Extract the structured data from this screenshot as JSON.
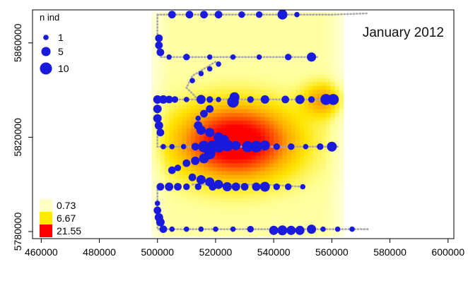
{
  "chart_data": {
    "type": "scatter",
    "title": "January 2012",
    "xlabel": "",
    "ylabel": "",
    "xlim": [
      457000,
      602000
    ],
    "ylim": [
      5777000,
      5874000
    ],
    "x_ticks": [
      460000,
      480000,
      500000,
      520000,
      540000,
      560000,
      580000,
      600000
    ],
    "y_ticks": [
      5780000,
      5820000,
      5860000
    ],
    "x_tick_labels": [
      "460000",
      "480000",
      "500000",
      "520000",
      "540000",
      "560000",
      "580000",
      "600000"
    ],
    "y_tick_labels": [
      "5780000",
      "5820000",
      "5860000"
    ],
    "grid": false,
    "size_legend": {
      "title": "n ind",
      "placement": "top-left",
      "entries": [
        {
          "label": "1",
          "n": 1
        },
        {
          "label": "5",
          "n": 5
        },
        {
          "label": "10",
          "n": 10
        }
      ]
    },
    "density_legend": {
      "placement": "bottom-left",
      "entries": [
        {
          "label": "0.73",
          "color": "#ffffc4"
        },
        {
          "label": "6.67",
          "color": "#ffea00"
        },
        {
          "label": "21.55",
          "color": "#ff0000"
        }
      ]
    },
    "density_surface": {
      "xrange": [
        498000,
        564000
      ],
      "yrange": [
        5778000,
        5873000
      ],
      "palette": [
        "#fffff0",
        "#ffff99",
        "#ffe400",
        "#ffaa00",
        "#ff5500",
        "#ff0000"
      ],
      "hotspots": [
        {
          "x": 527000,
          "y": 5818000,
          "sx": 14000,
          "sy": 11000,
          "w": 1.0
        },
        {
          "x": 557000,
          "y": 5836000,
          "sx": 5000,
          "sy": 5000,
          "w": 0.45
        }
      ]
    },
    "track_color": "#a8a8a8",
    "point_color": "#1a1adc",
    "tracks": [
      {
        "name": "",
        "points": [
          [
            500000,
            5872000
          ],
          [
            520000,
            5872000
          ],
          [
            540000,
            5872000
          ],
          [
            560000,
            5872000
          ],
          [
            572000,
            5872500
          ]
        ]
      },
      {
        "name": "",
        "points": [
          [
            500000,
            5872000
          ],
          [
            500000,
            5858000
          ],
          [
            501000,
            5854000
          ],
          [
            555000,
            5854000
          ]
        ]
      },
      {
        "name": "",
        "points": [
          [
            520000,
            5852000
          ],
          [
            512000,
            5846000
          ],
          [
            510000,
            5841000
          ],
          [
            514000,
            5836000
          ]
        ]
      },
      {
        "name": "",
        "points": [
          [
            499000,
            5836000
          ],
          [
            561000,
            5836000
          ]
        ]
      },
      {
        "name": "",
        "points": [
          [
            500000,
            5836000
          ],
          [
            500000,
            5816000
          ],
          [
            562000,
            5816000
          ]
        ]
      },
      {
        "name": "",
        "points": [
          [
            512000,
            5800000
          ],
          [
            536000,
            5800000
          ],
          [
            550000,
            5799000
          ]
        ]
      },
      {
        "name": "",
        "points": [
          [
            500000,
            5799000
          ],
          [
            500000,
            5782000
          ],
          [
            500000,
            5781000
          ],
          [
            573000,
            5781000
          ]
        ]
      }
    ],
    "points": [
      {
        "x": 505000,
        "y": 5872000,
        "n": 3
      },
      {
        "x": 511000,
        "y": 5872000,
        "n": 3
      },
      {
        "x": 516000,
        "y": 5872000,
        "n": 3
      },
      {
        "x": 521000,
        "y": 5872000,
        "n": 3
      },
      {
        "x": 529000,
        "y": 5872000,
        "n": 2
      },
      {
        "x": 535000,
        "y": 5872000,
        "n": 2
      },
      {
        "x": 543000,
        "y": 5872000,
        "n": 6
      },
      {
        "x": 548000,
        "y": 5872000,
        "n": 1
      },
      {
        "x": 500500,
        "y": 5862000,
        "n": 3
      },
      {
        "x": 500500,
        "y": 5859000,
        "n": 3
      },
      {
        "x": 501000,
        "y": 5856000,
        "n": 3
      },
      {
        "x": 504000,
        "y": 5854000,
        "n": 1
      },
      {
        "x": 510000,
        "y": 5854000,
        "n": 2
      },
      {
        "x": 518000,
        "y": 5854000,
        "n": 1
      },
      {
        "x": 526000,
        "y": 5854000,
        "n": 1
      },
      {
        "x": 535000,
        "y": 5854000,
        "n": 1
      },
      {
        "x": 545000,
        "y": 5854000,
        "n": 2
      },
      {
        "x": 553000,
        "y": 5854000,
        "n": 5
      },
      {
        "x": 521000,
        "y": 5851000,
        "n": 1
      },
      {
        "x": 518000,
        "y": 5849000,
        "n": 1
      },
      {
        "x": 515000,
        "y": 5847000,
        "n": 1
      },
      {
        "x": 512000,
        "y": 5844000,
        "n": 1
      },
      {
        "x": 500000,
        "y": 5836000,
        "n": 4
      },
      {
        "x": 502000,
        "y": 5836000,
        "n": 4
      },
      {
        "x": 504000,
        "y": 5836000,
        "n": 3
      },
      {
        "x": 506000,
        "y": 5836000,
        "n": 2
      },
      {
        "x": 510000,
        "y": 5836000,
        "n": 1
      },
      {
        "x": 515000,
        "y": 5836000,
        "n": 5
      },
      {
        "x": 518000,
        "y": 5836000,
        "n": 2
      },
      {
        "x": 521000,
        "y": 5836000,
        "n": 1
      },
      {
        "x": 526000,
        "y": 5835000,
        "n": 9
      },
      {
        "x": 526500,
        "y": 5837000,
        "n": 6
      },
      {
        "x": 532000,
        "y": 5836000,
        "n": 2
      },
      {
        "x": 537000,
        "y": 5836000,
        "n": 4
      },
      {
        "x": 544000,
        "y": 5836000,
        "n": 3
      },
      {
        "x": 549000,
        "y": 5836000,
        "n": 5
      },
      {
        "x": 553000,
        "y": 5836000,
        "n": 2
      },
      {
        "x": 558000,
        "y": 5836000,
        "n": 8
      },
      {
        "x": 560500,
        "y": 5836000,
        "n": 8
      },
      {
        "x": 500000,
        "y": 5832000,
        "n": 4
      },
      {
        "x": 500000,
        "y": 5828000,
        "n": 4
      },
      {
        "x": 500500,
        "y": 5825000,
        "n": 4
      },
      {
        "x": 501000,
        "y": 5822000,
        "n": 3
      },
      {
        "x": 518000,
        "y": 5832000,
        "n": 3
      },
      {
        "x": 516000,
        "y": 5830000,
        "n": 3
      },
      {
        "x": 514000,
        "y": 5828000,
        "n": 1
      },
      {
        "x": 515000,
        "y": 5823000,
        "n": 5
      },
      {
        "x": 518000,
        "y": 5822000,
        "n": 5
      },
      {
        "x": 521000,
        "y": 5820000,
        "n": 6
      },
      {
        "x": 523000,
        "y": 5819000,
        "n": 5
      },
      {
        "x": 514000,
        "y": 5825000,
        "n": 4
      },
      {
        "x": 502000,
        "y": 5816000,
        "n": 1
      },
      {
        "x": 505000,
        "y": 5816000,
        "n": 1
      },
      {
        "x": 509000,
        "y": 5816000,
        "n": 1
      },
      {
        "x": 513000,
        "y": 5816000,
        "n": 3
      },
      {
        "x": 516000,
        "y": 5816000,
        "n": 9
      },
      {
        "x": 519000,
        "y": 5816000,
        "n": 10
      },
      {
        "x": 521000,
        "y": 5816000,
        "n": 10
      },
      {
        "x": 524000,
        "y": 5816500,
        "n": 9
      },
      {
        "x": 527000,
        "y": 5816500,
        "n": 5
      },
      {
        "x": 531000,
        "y": 5816000,
        "n": 8
      },
      {
        "x": 534000,
        "y": 5816000,
        "n": 9
      },
      {
        "x": 537000,
        "y": 5816500,
        "n": 6
      },
      {
        "x": 541000,
        "y": 5816000,
        "n": 2
      },
      {
        "x": 546000,
        "y": 5816000,
        "n": 2
      },
      {
        "x": 551000,
        "y": 5816000,
        "n": 1
      },
      {
        "x": 556000,
        "y": 5816000,
        "n": 2
      },
      {
        "x": 560000,
        "y": 5816000,
        "n": 6
      },
      {
        "x": 518000,
        "y": 5813000,
        "n": 8
      },
      {
        "x": 516000,
        "y": 5811000,
        "n": 6
      },
      {
        "x": 513000,
        "y": 5810000,
        "n": 4
      },
      {
        "x": 510000,
        "y": 5809000,
        "n": 3
      },
      {
        "x": 507000,
        "y": 5807000,
        "n": 2
      },
      {
        "x": 505000,
        "y": 5806000,
        "n": 3
      },
      {
        "x": 512000,
        "y": 5803000,
        "n": 3
      },
      {
        "x": 515000,
        "y": 5802000,
        "n": 5
      },
      {
        "x": 518000,
        "y": 5801000,
        "n": 5
      },
      {
        "x": 521000,
        "y": 5800000,
        "n": 5
      },
      {
        "x": 524000,
        "y": 5799000,
        "n": 5
      },
      {
        "x": 527000,
        "y": 5799000,
        "n": 4
      },
      {
        "x": 501000,
        "y": 5799000,
        "n": 3
      },
      {
        "x": 504000,
        "y": 5799000,
        "n": 4
      },
      {
        "x": 507000,
        "y": 5799000,
        "n": 3
      },
      {
        "x": 510000,
        "y": 5799000,
        "n": 2
      },
      {
        "x": 514000,
        "y": 5799000,
        "n": 2
      },
      {
        "x": 519000,
        "y": 5799000,
        "n": 3
      },
      {
        "x": 530000,
        "y": 5799000,
        "n": 3
      },
      {
        "x": 534000,
        "y": 5799000,
        "n": 4
      },
      {
        "x": 537000,
        "y": 5799000,
        "n": 6
      },
      {
        "x": 541000,
        "y": 5799000,
        "n": 2
      },
      {
        "x": 545000,
        "y": 5799000,
        "n": 2
      },
      {
        "x": 550000,
        "y": 5799000,
        "n": 1
      },
      {
        "x": 500000,
        "y": 5792000,
        "n": 1
      },
      {
        "x": 500000,
        "y": 5789000,
        "n": 3
      },
      {
        "x": 500500,
        "y": 5786000,
        "n": 4
      },
      {
        "x": 501000,
        "y": 5784000,
        "n": 4
      },
      {
        "x": 502000,
        "y": 5781000,
        "n": 3
      },
      {
        "x": 505000,
        "y": 5781000,
        "n": 1
      },
      {
        "x": 510000,
        "y": 5781000,
        "n": 1
      },
      {
        "x": 515000,
        "y": 5781000,
        "n": 1
      },
      {
        "x": 520000,
        "y": 5781000,
        "n": 1
      },
      {
        "x": 526000,
        "y": 5781000,
        "n": 1
      },
      {
        "x": 532000,
        "y": 5781000,
        "n": 2
      },
      {
        "x": 540000,
        "y": 5780500,
        "n": 5
      },
      {
        "x": 543000,
        "y": 5780500,
        "n": 6
      },
      {
        "x": 546000,
        "y": 5780500,
        "n": 5
      },
      {
        "x": 549000,
        "y": 5780500,
        "n": 5
      },
      {
        "x": 553000,
        "y": 5781000,
        "n": 5
      },
      {
        "x": 557000,
        "y": 5781000,
        "n": 1
      },
      {
        "x": 562000,
        "y": 5781000,
        "n": 1
      },
      {
        "x": 567000,
        "y": 5781000,
        "n": 1
      }
    ]
  }
}
